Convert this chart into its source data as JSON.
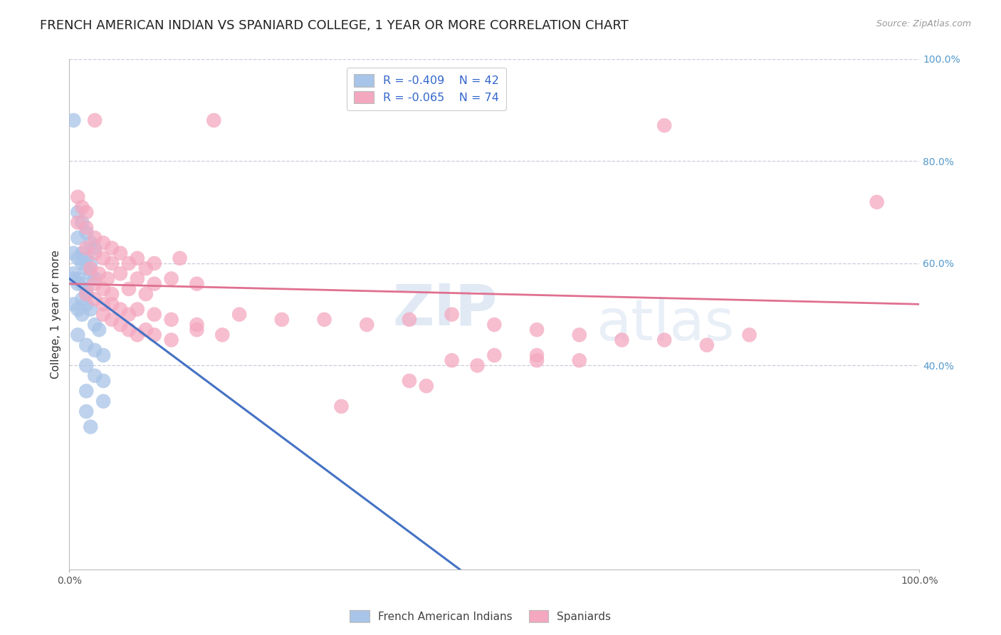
{
  "title": "FRENCH AMERICAN INDIAN VS SPANIARD COLLEGE, 1 YEAR OR MORE CORRELATION CHART",
  "source": "Source: ZipAtlas.com",
  "ylabel": "College, 1 year or more",
  "watermark_zip": "ZIP",
  "watermark_atlas": "atlas",
  "blue_color": "#a8c4e8",
  "pink_color": "#f4a8c0",
  "blue_line_color": "#4472c4",
  "pink_line_color": "#e07090",
  "blue_points": [
    [
      0.5,
      88
    ],
    [
      1.0,
      70
    ],
    [
      1.5,
      68
    ],
    [
      2.0,
      66
    ],
    [
      2.5,
      64
    ],
    [
      3.0,
      63
    ],
    [
      1.0,
      65
    ],
    [
      1.5,
      62
    ],
    [
      2.0,
      61
    ],
    [
      2.5,
      60
    ],
    [
      0.5,
      62
    ],
    [
      1.0,
      61
    ],
    [
      1.5,
      60
    ],
    [
      2.0,
      59
    ],
    [
      2.5,
      58
    ],
    [
      3.0,
      57
    ],
    [
      0.5,
      58
    ],
    [
      1.0,
      57
    ],
    [
      1.5,
      56
    ],
    [
      2.0,
      55
    ],
    [
      0.5,
      57
    ],
    [
      1.0,
      56
    ],
    [
      2.0,
      54
    ],
    [
      1.5,
      53
    ],
    [
      2.0,
      52
    ],
    [
      2.5,
      51
    ],
    [
      0.5,
      52
    ],
    [
      1.0,
      51
    ],
    [
      1.5,
      50
    ],
    [
      3.0,
      48
    ],
    [
      3.5,
      47
    ],
    [
      1.0,
      46
    ],
    [
      2.0,
      44
    ],
    [
      3.0,
      43
    ],
    [
      4.0,
      42
    ],
    [
      2.0,
      40
    ],
    [
      3.0,
      38
    ],
    [
      4.0,
      37
    ],
    [
      2.0,
      35
    ],
    [
      4.0,
      33
    ],
    [
      2.0,
      31
    ],
    [
      2.5,
      28
    ]
  ],
  "pink_points": [
    [
      1.0,
      73
    ],
    [
      3.0,
      88
    ],
    [
      17.0,
      88
    ],
    [
      70.0,
      87
    ],
    [
      1.5,
      71
    ],
    [
      2.0,
      70
    ],
    [
      1.0,
      68
    ],
    [
      2.0,
      67
    ],
    [
      3.0,
      65
    ],
    [
      4.0,
      64
    ],
    [
      5.0,
      63
    ],
    [
      2.0,
      63
    ],
    [
      3.0,
      62
    ],
    [
      4.0,
      61
    ],
    [
      6.0,
      62
    ],
    [
      8.0,
      61
    ],
    [
      5.0,
      60
    ],
    [
      7.0,
      60
    ],
    [
      9.0,
      59
    ],
    [
      2.5,
      59
    ],
    [
      3.5,
      58
    ],
    [
      4.5,
      57
    ],
    [
      10.0,
      60
    ],
    [
      13.0,
      61
    ],
    [
      6.0,
      58
    ],
    [
      8.0,
      57
    ],
    [
      10.0,
      56
    ],
    [
      3.0,
      56
    ],
    [
      4.0,
      55
    ],
    [
      5.0,
      54
    ],
    [
      7.0,
      55
    ],
    [
      9.0,
      54
    ],
    [
      12.0,
      57
    ],
    [
      15.0,
      56
    ],
    [
      2.0,
      54
    ],
    [
      3.0,
      53
    ],
    [
      4.0,
      52
    ],
    [
      5.0,
      52
    ],
    [
      6.0,
      51
    ],
    [
      7.0,
      50
    ],
    [
      8.0,
      51
    ],
    [
      10.0,
      50
    ],
    [
      12.0,
      49
    ],
    [
      15.0,
      48
    ],
    [
      4.0,
      50
    ],
    [
      5.0,
      49
    ],
    [
      6.0,
      48
    ],
    [
      7.0,
      47
    ],
    [
      8.0,
      46
    ],
    [
      9.0,
      47
    ],
    [
      10.0,
      46
    ],
    [
      12.0,
      45
    ],
    [
      15.0,
      47
    ],
    [
      18.0,
      46
    ],
    [
      20.0,
      50
    ],
    [
      25.0,
      49
    ],
    [
      30.0,
      49
    ],
    [
      35.0,
      48
    ],
    [
      40.0,
      49
    ],
    [
      45.0,
      50
    ],
    [
      50.0,
      48
    ],
    [
      55.0,
      47
    ],
    [
      55.0,
      42
    ],
    [
      60.0,
      41
    ],
    [
      50.0,
      42
    ],
    [
      55.0,
      41
    ],
    [
      60.0,
      46
    ],
    [
      65.0,
      45
    ],
    [
      70.0,
      45
    ],
    [
      75.0,
      44
    ],
    [
      80.0,
      46
    ],
    [
      95.0,
      72
    ],
    [
      45.0,
      41
    ],
    [
      48.0,
      40
    ],
    [
      40.0,
      37
    ],
    [
      42.0,
      36
    ],
    [
      32.0,
      32
    ]
  ],
  "blue_line_x": [
    0,
    46
  ],
  "blue_line_y": [
    57,
    0
  ],
  "pink_line_x": [
    0,
    100
  ],
  "pink_line_y": [
    56,
    52
  ],
  "xlim": [
    0,
    100
  ],
  "ylim": [
    0,
    100
  ],
  "grid_color": "#ccccdd",
  "background_color": "#ffffff",
  "title_fontsize": 13,
  "axis_label_fontsize": 11,
  "tick_fontsize": 10,
  "right_tick_color": "#5599cc",
  "legend_label_color": "#3366cc"
}
